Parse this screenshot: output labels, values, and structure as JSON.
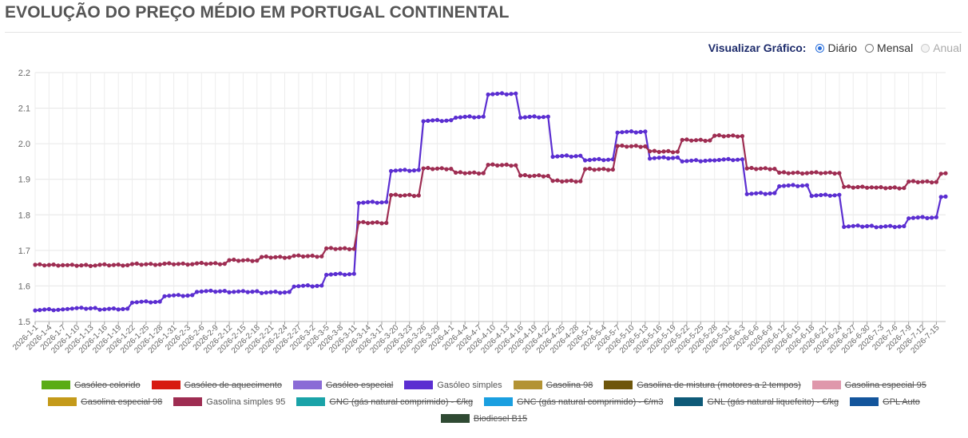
{
  "page": {
    "title": "EVOLUÇÃO DO PREÇO MÉDIO EM PORTUGAL CONTINENTAL"
  },
  "view": {
    "label": "Visualizar Gráfico:",
    "options": [
      {
        "label": "Diário",
        "checked": true,
        "disabled": false
      },
      {
        "label": "Mensal",
        "checked": false,
        "disabled": false
      },
      {
        "label": "Anual",
        "checked": false,
        "disabled": true
      }
    ]
  },
  "legend": {
    "items": [
      {
        "label": "Gasóleo colorido",
        "color": "#5aac16",
        "visible": false
      },
      {
        "label": "Gasóleo de aquecimento",
        "color": "#d71a10",
        "visible": false
      },
      {
        "label": "Gasóleo especial",
        "color": "#8a6bd6",
        "visible": false
      },
      {
        "label": "Gasóleo simples",
        "color": "#5b2ed1",
        "visible": true
      },
      {
        "label": "Gasolina 98",
        "color": "#b39334",
        "visible": false
      },
      {
        "label": "Gasolina de mistura (motores a 2 tempos)",
        "color": "#6e560c",
        "visible": false
      },
      {
        "label": "Gasolina especial 95",
        "color": "#df97ab",
        "visible": false
      },
      {
        "label": "Gasolina especial 98",
        "color": "#c49a1a",
        "visible": false
      },
      {
        "label": "Gasolina simples 95",
        "color": "#9e2d52",
        "visible": true
      },
      {
        "label": "GNC (gás natural comprimido) - €/kg",
        "color": "#1aa3a8",
        "visible": false
      },
      {
        "label": "GNC (gás natural comprimido) - €/m3",
        "color": "#1a9fe0",
        "visible": false
      },
      {
        "label": "GNL (gás natural liquefeito) - €/kg",
        "color": "#0e5a78",
        "visible": false
      },
      {
        "label": "GPL Auto",
        "color": "#13559c",
        "visible": false
      },
      {
        "label": "Biodiesel B15",
        "color": "#2f4a33",
        "visible": false
      }
    ]
  },
  "chart_data": {
    "type": "line",
    "title": "",
    "xlabel": "",
    "ylabel": "",
    "ylim": [
      1.5,
      2.2
    ],
    "yticks": [
      "1.5",
      "1.6",
      "1.7",
      "1.8",
      "1.9",
      "2.0",
      "2.1",
      "2.2"
    ],
    "grid": true,
    "legend_position": "bottom",
    "x_start": "2026-1-1",
    "x_end": "2026-7-17",
    "x_tick_labels": [
      "2026-1-1",
      "2026-1-4",
      "2026-1-7",
      "2026-1-10",
      "2026-1-13",
      "2026-1-16",
      "2026-1-19",
      "2026-1-22",
      "2026-1-25",
      "2026-1-28",
      "2026-1-31",
      "2026-2-3",
      "2026-2-6",
      "2026-2-9",
      "2026-2-12",
      "2026-2-15",
      "2026-2-18",
      "2026-2-21",
      "2026-2-24",
      "2026-2-27",
      "2026-3-2",
      "2026-3-5",
      "2026-3-8",
      "2026-3-11",
      "2026-3-14",
      "2026-3-17",
      "2026-3-20",
      "2026-3-23",
      "2026-3-26",
      "2026-3-29",
      "2026-4-1",
      "2026-4-4",
      "2026-4-7",
      "2026-4-10",
      "2026-4-13",
      "2026-4-16",
      "2026-4-19",
      "2026-4-22",
      "2026-4-25",
      "2026-4-28",
      "2026-5-1",
      "2026-5-4",
      "2026-5-7",
      "2026-5-10",
      "2026-5-13",
      "2026-5-16",
      "2026-5-19",
      "2026-5-22",
      "2026-5-25",
      "2026-5-28",
      "2026-5-31",
      "2026-6-3",
      "2026-6-6",
      "2026-6-9",
      "2026-6-12",
      "2026-6-15",
      "2026-6-18",
      "2026-6-21",
      "2026-6-24",
      "2026-6-27",
      "2026-6-30",
      "2026-7-3",
      "2026-7-6",
      "2026-7-9",
      "2026-7-12",
      "2026-7-15"
    ],
    "series": [
      {
        "name": "Gasóleo simples",
        "color": "#5b2ed1",
        "weekly_values": [
          1.533,
          1.537,
          1.535,
          1.555,
          1.573,
          1.585,
          1.584,
          1.582,
          1.6,
          1.633,
          1.835,
          1.925,
          2.065,
          2.075,
          2.14,
          2.075,
          1.965,
          1.955,
          2.033,
          1.96,
          1.952,
          1.955,
          1.86,
          1.882,
          1.855,
          1.768,
          1.767,
          1.792,
          1.852
        ]
      },
      {
        "name": "Gasolina simples 95",
        "color": "#9e2d52",
        "weekly_values": [
          1.659,
          1.658,
          1.659,
          1.661,
          1.662,
          1.663,
          1.672,
          1.681,
          1.684,
          1.705,
          1.778,
          1.855,
          1.93,
          1.918,
          1.94,
          1.91,
          1.895,
          1.928,
          1.993,
          1.978,
          2.01,
          2.022,
          1.93,
          1.918,
          1.918,
          1.878,
          1.876,
          1.893,
          1.915
        ]
      }
    ]
  }
}
